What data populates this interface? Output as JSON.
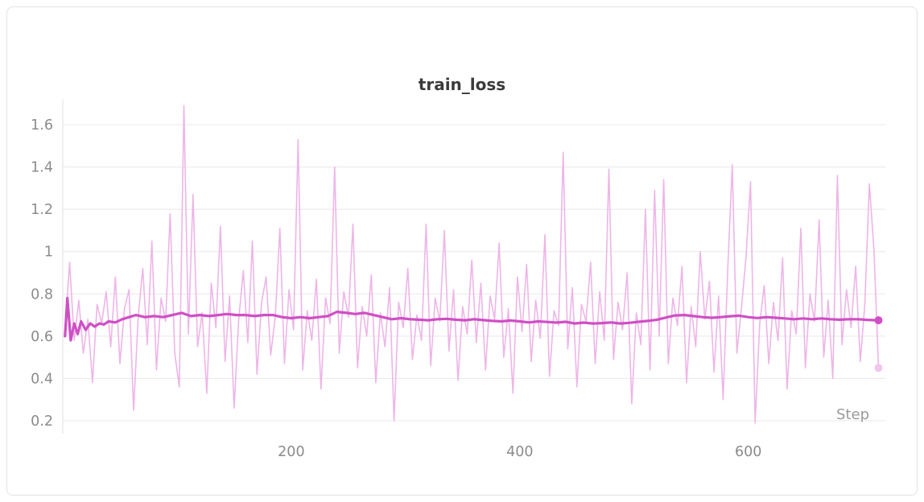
{
  "card": {
    "title": "train_loss"
  },
  "chart_data": {
    "type": "line",
    "title": "train_loss",
    "xlabel": "Step",
    "ylabel": "",
    "x_ticks": [
      200,
      400,
      600
    ],
    "y_ticks": [
      0.2,
      0.4,
      0.6,
      0.8,
      1,
      1.2,
      1.4,
      1.6
    ],
    "xlim": [
      0,
      720
    ],
    "ylim": [
      0.14,
      1.72
    ],
    "grid": "horizontal",
    "legend_position": "none",
    "colors": {
      "smoothed": "#cf4fc5",
      "raw": "#eeb5e7",
      "raw_end_dot": "#f2c6ec",
      "grid": "#e8e8e8",
      "axis_line": "#e0e0e0",
      "tick_text": "#8b8b8b",
      "axis_label_text": "#9a9a9a",
      "title_text": "#3b3b3b"
    },
    "series": [
      {
        "name": "train_loss (raw)",
        "x_start": 2,
        "x_step": 4,
        "values": [
          0.62,
          0.95,
          0.58,
          0.77,
          0.52,
          0.68,
          0.38,
          0.75,
          0.66,
          0.81,
          0.55,
          0.88,
          0.47,
          0.73,
          0.82,
          0.25,
          0.69,
          0.92,
          0.56,
          1.05,
          0.44,
          0.78,
          0.67,
          1.18,
          0.52,
          0.36,
          1.69,
          0.61,
          1.27,
          0.55,
          0.71,
          0.33,
          0.85,
          0.64,
          1.12,
          0.48,
          0.79,
          0.26,
          0.68,
          0.91,
          0.57,
          1.05,
          0.42,
          0.76,
          0.88,
          0.51,
          0.69,
          1.11,
          0.47,
          0.82,
          0.63,
          1.53,
          0.44,
          0.72,
          0.58,
          0.87,
          0.35,
          0.78,
          0.66,
          1.4,
          0.52,
          0.81,
          0.69,
          1.13,
          0.45,
          0.74,
          0.6,
          0.89,
          0.38,
          0.71,
          0.55,
          0.83,
          0.2,
          0.76,
          0.64,
          0.92,
          0.49,
          0.7,
          0.58,
          1.13,
          0.46,
          0.78,
          0.67,
          1.1,
          0.53,
          0.82,
          0.39,
          0.74,
          0.61,
          0.96,
          0.57,
          0.85,
          0.44,
          0.79,
          0.68,
          1.04,
          0.5,
          0.73,
          0.33,
          0.88,
          0.62,
          0.94,
          0.48,
          0.77,
          0.59,
          1.08,
          0.41,
          0.72,
          0.65,
          1.47,
          0.54,
          0.83,
          0.36,
          0.75,
          0.67,
          0.95,
          0.47,
          0.81,
          0.58,
          1.39,
          0.49,
          0.76,
          0.63,
          0.9,
          0.28,
          0.71,
          0.56,
          1.2,
          0.44,
          1.29,
          0.6,
          1.34,
          0.47,
          0.78,
          0.65,
          0.93,
          0.38,
          0.74,
          0.55,
          1.0,
          0.68,
          0.86,
          0.43,
          0.79,
          0.3,
          0.91,
          1.41,
          0.52,
          0.73,
          0.97,
          1.33,
          0.19,
          0.66,
          0.84,
          0.47,
          0.76,
          0.58,
          0.97,
          0.35,
          0.72,
          0.61,
          1.11,
          0.45,
          0.8,
          0.67,
          1.15,
          0.5,
          0.77,
          0.4,
          1.36,
          0.56,
          0.82,
          0.64,
          0.93,
          0.48,
          0.75,
          1.32,
          1.01,
          0.45
        ]
      },
      {
        "name": "train_loss (smoothed)",
        "points": [
          [
            2,
            0.6
          ],
          [
            4,
            0.78
          ],
          [
            7,
            0.58
          ],
          [
            10,
            0.66
          ],
          [
            13,
            0.61
          ],
          [
            16,
            0.67
          ],
          [
            20,
            0.63
          ],
          [
            24,
            0.66
          ],
          [
            28,
            0.645
          ],
          [
            32,
            0.66
          ],
          [
            36,
            0.655
          ],
          [
            40,
            0.67
          ],
          [
            46,
            0.665
          ],
          [
            52,
            0.68
          ],
          [
            58,
            0.69
          ],
          [
            64,
            0.7
          ],
          [
            72,
            0.69
          ],
          [
            80,
            0.695
          ],
          [
            88,
            0.69
          ],
          [
            96,
            0.7
          ],
          [
            104,
            0.71
          ],
          [
            112,
            0.695
          ],
          [
            120,
            0.7
          ],
          [
            128,
            0.695
          ],
          [
            136,
            0.7
          ],
          [
            144,
            0.705
          ],
          [
            152,
            0.7
          ],
          [
            160,
            0.7
          ],
          [
            168,
            0.695
          ],
          [
            176,
            0.7
          ],
          [
            184,
            0.7
          ],
          [
            192,
            0.69
          ],
          [
            200,
            0.685
          ],
          [
            208,
            0.69
          ],
          [
            216,
            0.685
          ],
          [
            224,
            0.69
          ],
          [
            232,
            0.695
          ],
          [
            240,
            0.715
          ],
          [
            248,
            0.71
          ],
          [
            256,
            0.705
          ],
          [
            264,
            0.71
          ],
          [
            272,
            0.7
          ],
          [
            280,
            0.69
          ],
          [
            288,
            0.68
          ],
          [
            296,
            0.685
          ],
          [
            304,
            0.68
          ],
          [
            312,
            0.678
          ],
          [
            320,
            0.675
          ],
          [
            328,
            0.68
          ],
          [
            336,
            0.682
          ],
          [
            344,
            0.678
          ],
          [
            352,
            0.675
          ],
          [
            360,
            0.68
          ],
          [
            368,
            0.676
          ],
          [
            376,
            0.672
          ],
          [
            384,
            0.67
          ],
          [
            392,
            0.674
          ],
          [
            400,
            0.67
          ],
          [
            408,
            0.665
          ],
          [
            416,
            0.67
          ],
          [
            424,
            0.667
          ],
          [
            432,
            0.664
          ],
          [
            440,
            0.668
          ],
          [
            448,
            0.66
          ],
          [
            456,
            0.664
          ],
          [
            464,
            0.66
          ],
          [
            472,
            0.662
          ],
          [
            480,
            0.665
          ],
          [
            488,
            0.66
          ],
          [
            496,
            0.663
          ],
          [
            504,
            0.668
          ],
          [
            512,
            0.672
          ],
          [
            520,
            0.678
          ],
          [
            528,
            0.688
          ],
          [
            536,
            0.698
          ],
          [
            544,
            0.7
          ],
          [
            552,
            0.695
          ],
          [
            560,
            0.69
          ],
          [
            568,
            0.687
          ],
          [
            576,
            0.69
          ],
          [
            584,
            0.694
          ],
          [
            592,
            0.697
          ],
          [
            600,
            0.69
          ],
          [
            608,
            0.686
          ],
          [
            616,
            0.69
          ],
          [
            624,
            0.687
          ],
          [
            632,
            0.684
          ],
          [
            640,
            0.68
          ],
          [
            648,
            0.684
          ],
          [
            656,
            0.68
          ],
          [
            664,
            0.684
          ],
          [
            672,
            0.68
          ],
          [
            680,
            0.678
          ],
          [
            688,
            0.68
          ],
          [
            696,
            0.68
          ],
          [
            704,
            0.677
          ],
          [
            714,
            0.675
          ]
        ]
      }
    ],
    "end_markers": [
      {
        "series": "smoothed",
        "x": 714,
        "y": 0.675
      },
      {
        "series": "raw",
        "x": 714,
        "y": 0.45
      }
    ]
  }
}
